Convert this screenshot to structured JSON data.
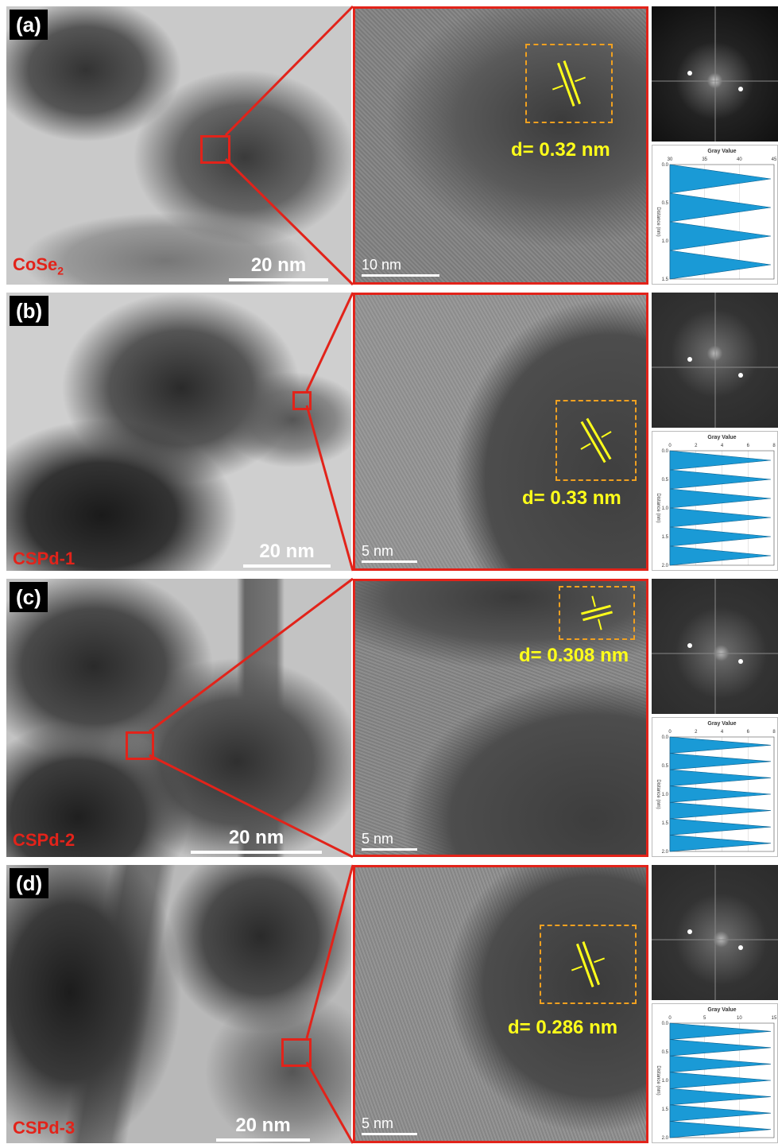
{
  "panels": [
    {
      "label": "(a)",
      "sample": "CoSe",
      "sample_sub": "2",
      "tem_scale": "20 nm",
      "hr_scale": "10 nm",
      "d": "d= 0.32 nm",
      "profile_title": "Gray Value",
      "profile_xticks": [
        "30",
        "35",
        "40",
        "45"
      ],
      "profile_yticks": [
        "0.0",
        "0.5",
        "1.0",
        "1.5"
      ],
      "profile_ylabel": "Distance (nm)",
      "profile_peaks": 4
    },
    {
      "label": "(b)",
      "sample": "CSPd-1",
      "sample_sub": "",
      "tem_scale": "20 nm",
      "hr_scale": "5 nm",
      "d": "d= 0.33 nm",
      "profile_title": "Gray Value",
      "profile_xticks": [
        "0",
        "2",
        "4",
        "6",
        "8"
      ],
      "profile_yticks": [
        "0.0",
        "0.5",
        "1.0",
        "1.5",
        "2.0"
      ],
      "profile_ylabel": "Distance (nm)",
      "profile_peaks": 6
    },
    {
      "label": "(c)",
      "sample": "CSPd-2",
      "sample_sub": "",
      "tem_scale": "20 nm",
      "hr_scale": "5 nm",
      "d": "d= 0.308 nm",
      "profile_title": "Gray Value",
      "profile_xticks": [
        "0",
        "2",
        "4",
        "6",
        "8"
      ],
      "profile_yticks": [
        "0.0",
        "0.5",
        "1.0",
        "1.5",
        "2.0"
      ],
      "profile_ylabel": "Distance (nm)",
      "profile_peaks": 7
    },
    {
      "label": "(d)",
      "sample": "CSPd-3",
      "sample_sub": "",
      "tem_scale": "20 nm",
      "hr_scale": "5 nm",
      "d": "d= 0.286 nm",
      "profile_title": "Gray Value",
      "profile_xticks": [
        "0",
        "5",
        "10",
        "15"
      ],
      "profile_yticks": [
        "0.0",
        "0.5",
        "1.0",
        "1.5",
        "2.0"
      ],
      "profile_ylabel": "Distance (nm)",
      "profile_peaks": 7
    }
  ],
  "colors": {
    "accent_red": "#e2231a",
    "lattice_yellow": "#ffff1a",
    "box_orange": "#f0a020",
    "profile_blue": "#1a9ad6"
  }
}
